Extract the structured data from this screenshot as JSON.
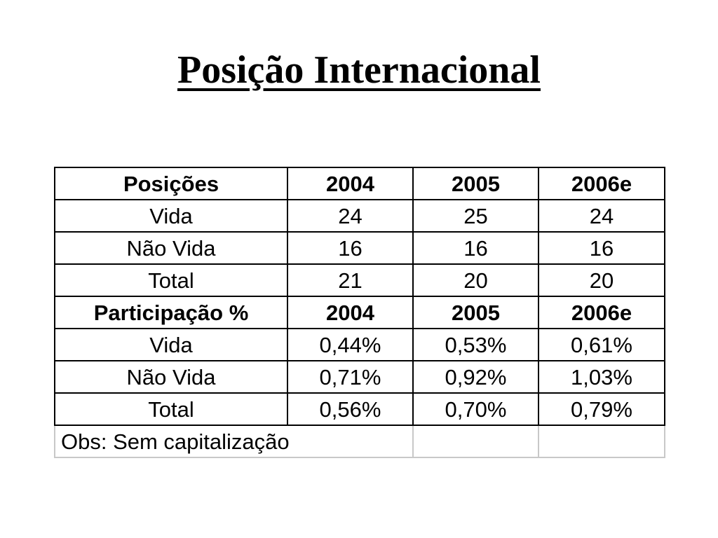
{
  "title": "Posição Internacional",
  "table": {
    "positions_header": [
      "Posições",
      "2004",
      "2005",
      "2006e"
    ],
    "positions_rows": [
      [
        "Vida",
        "24",
        "25",
        "24"
      ],
      [
        "Não Vida",
        "16",
        "16",
        "16"
      ],
      [
        "Total",
        "21",
        "20",
        "20"
      ]
    ],
    "share_header": [
      "Participação %",
      "2004",
      "2005",
      "2006e"
    ],
    "share_rows": [
      [
        "Vida",
        "0,44%",
        "0,53%",
        "0,61%"
      ],
      [
        "Não Vida",
        "0,71%",
        "0,92%",
        "1,03%"
      ],
      [
        "Total",
        "0,56%",
        "0,70%",
        "0,79%"
      ]
    ],
    "note": "Obs: Sem capitalização"
  }
}
